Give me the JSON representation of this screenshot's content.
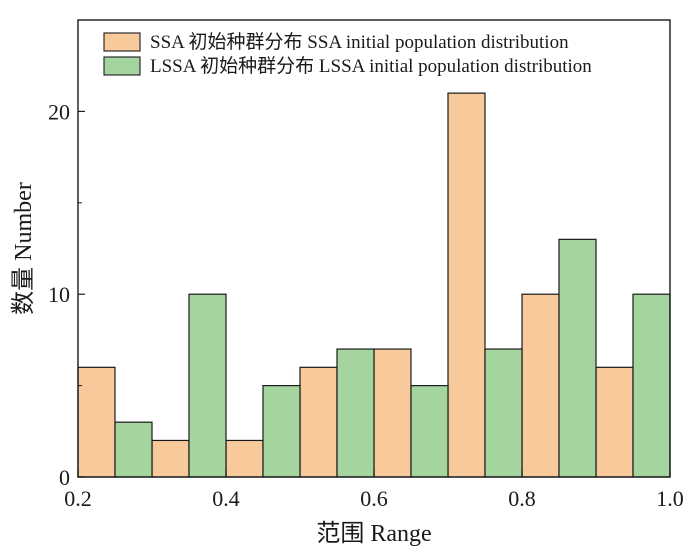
{
  "chart_data": {
    "type": "bar",
    "title": "",
    "xlabel": "范围 Range",
    "ylabel": "数量 Number",
    "xlim": [
      0.2,
      1.0
    ],
    "ylim": [
      0,
      25
    ],
    "xticks": [
      "0.2",
      "0.4",
      "0.6",
      "0.8",
      "1.0"
    ],
    "yticks": [
      "0",
      "10",
      "20"
    ],
    "legend_position": "top-left",
    "series": [
      {
        "name": "SSA 初始种群分布 SSA initial population distribution",
        "color": "#f7c99b",
        "bins": [
          {
            "x0": 0.2,
            "x1": 0.25,
            "value": 6
          },
          {
            "x0": 0.3,
            "x1": 0.35,
            "value": 2
          },
          {
            "x0": 0.4,
            "x1": 0.45,
            "value": 2
          },
          {
            "x0": 0.5,
            "x1": 0.55,
            "value": 6
          },
          {
            "x0": 0.6,
            "x1": 0.65,
            "value": 7
          },
          {
            "x0": 0.7,
            "x1": 0.75,
            "value": 21
          },
          {
            "x0": 0.8,
            "x1": 0.85,
            "value": 10
          },
          {
            "x0": 0.9,
            "x1": 0.95,
            "value": 6
          }
        ]
      },
      {
        "name": "LSSA 初始种群分布 LSSA initial population distribution",
        "color": "#a5d59e",
        "bins": [
          {
            "x0": 0.25,
            "x1": 0.3,
            "value": 3
          },
          {
            "x0": 0.35,
            "x1": 0.4,
            "value": 10
          },
          {
            "x0": 0.45,
            "x1": 0.5,
            "value": 5
          },
          {
            "x0": 0.55,
            "x1": 0.6,
            "value": 7
          },
          {
            "x0": 0.65,
            "x1": 0.7,
            "value": 5
          },
          {
            "x0": 0.75,
            "x1": 0.8,
            "value": 7
          },
          {
            "x0": 0.85,
            "x1": 0.9,
            "value": 13
          },
          {
            "x0": 0.95,
            "x1": 1.0,
            "value": 10
          }
        ]
      }
    ]
  }
}
